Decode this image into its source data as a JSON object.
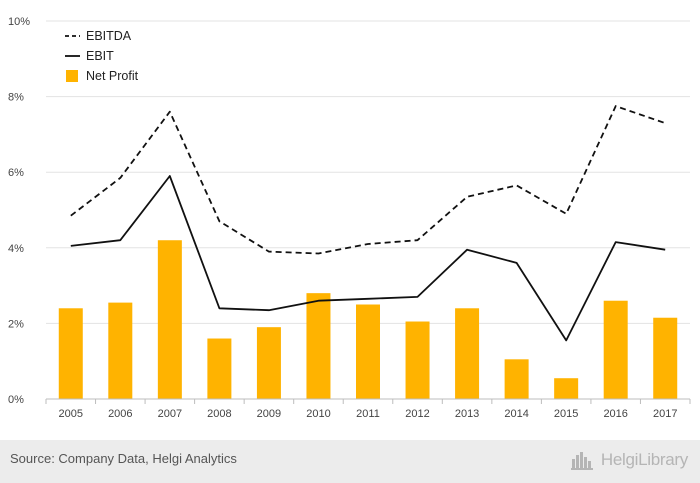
{
  "chart_data": {
    "type": "bar+line",
    "categories": [
      "2005",
      "2006",
      "2007",
      "2008",
      "2009",
      "2010",
      "2011",
      "2012",
      "2013",
      "2014",
      "2015",
      "2016",
      "2017"
    ],
    "series": [
      {
        "name": "EBITDA",
        "kind": "line",
        "style": "dashed",
        "color": "#111111",
        "values": [
          4.85,
          5.85,
          7.6,
          4.7,
          3.9,
          3.85,
          4.1,
          4.2,
          5.35,
          5.65,
          4.9,
          7.75,
          7.3
        ]
      },
      {
        "name": "EBIT",
        "kind": "line",
        "style": "solid",
        "color": "#111111",
        "values": [
          4.05,
          4.2,
          5.9,
          2.4,
          2.35,
          2.6,
          2.65,
          2.7,
          3.95,
          3.6,
          1.55,
          4.15,
          3.95
        ]
      },
      {
        "name": "Net Profit",
        "kind": "bar",
        "color": "#ffb300",
        "values": [
          2.4,
          2.55,
          4.2,
          1.6,
          1.9,
          2.8,
          2.5,
          2.05,
          2.4,
          1.05,
          0.55,
          2.6,
          2.15
        ]
      }
    ],
    "yticks": [
      0,
      2,
      4,
      6,
      8,
      10
    ],
    "ytick_labels": [
      "0%",
      "2%",
      "4%",
      "6%",
      "8%",
      "10%"
    ],
    "ylim": [
      0,
      10
    ],
    "grid": true,
    "legend_position": "top-left",
    "title": "",
    "xlabel": "",
    "ylabel": ""
  },
  "footer": {
    "source": "Source: Company Data, Helgi Analytics",
    "brand": "HelgiLibrary"
  },
  "icons": {
    "brand_logo": "helgi-library-logo-icon"
  }
}
